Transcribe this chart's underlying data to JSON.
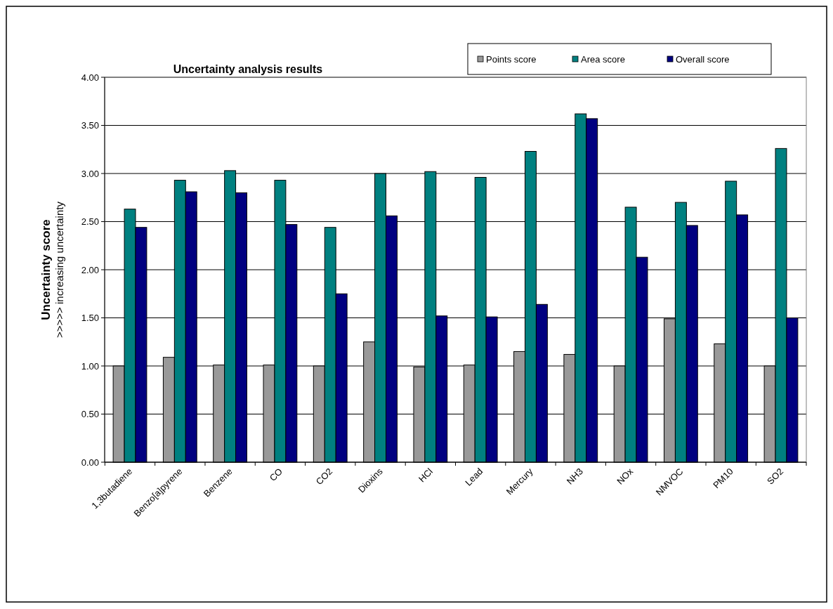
{
  "chart_data": {
    "type": "bar",
    "title": "Uncertainty analysis results",
    "ylabel": "Uncertainty score\n>>>>> increasing uncertainty",
    "categories": [
      "1,3butadiene",
      "Benzo[a]pyrene",
      "Benzene",
      "CO",
      "CO2",
      "Dioxins",
      "HCl",
      "Lead",
      "Mercury",
      "NH3",
      "NOx",
      "NMVOC",
      "PM10",
      "SO2"
    ],
    "series": [
      {
        "name": "Points score",
        "color": "#999999",
        "values": [
          1.0,
          1.09,
          1.01,
          1.01,
          1.0,
          1.25,
          0.99,
          1.01,
          1.15,
          1.12,
          1.0,
          1.49,
          1.23,
          1.0
        ]
      },
      {
        "name": "Area score",
        "color": "#008080",
        "values": [
          2.63,
          2.93,
          3.03,
          2.93,
          2.44,
          3.0,
          3.02,
          2.96,
          3.23,
          3.62,
          2.65,
          2.7,
          2.92,
          3.26
        ]
      },
      {
        "name": "Overall score",
        "color": "#000080",
        "values": [
          2.44,
          2.81,
          2.8,
          2.47,
          1.75,
          2.56,
          1.52,
          1.51,
          1.64,
          3.57,
          2.13,
          2.46,
          2.57,
          1.5
        ]
      }
    ],
    "ylim": [
      0,
      4
    ],
    "yticks": [
      {
        "value": 0,
        "label": "0.00"
      },
      {
        "value": 0.5,
        "label": "0.50"
      },
      {
        "value": 1,
        "label": "1.00"
      },
      {
        "value": 1.5,
        "label": "1.50"
      },
      {
        "value": 2,
        "label": "2.00"
      },
      {
        "value": 2.5,
        "label": "2.50"
      },
      {
        "value": 3,
        "label": "3.00"
      },
      {
        "value": 3.5,
        "label": "3.50"
      },
      {
        "value": 4,
        "label": "4.00"
      }
    ],
    "grid": "y",
    "legend": "top right"
  }
}
